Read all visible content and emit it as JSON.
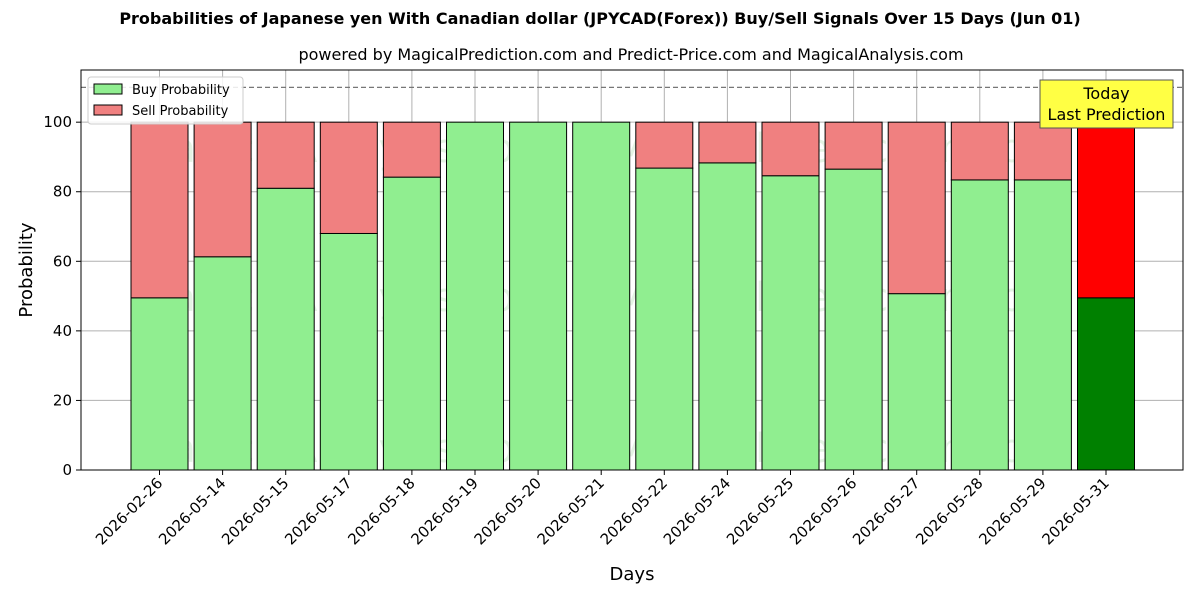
{
  "chart_data": {
    "type": "bar",
    "title": "Probabilities of Japanese yen With Canadian dollar (JPYCAD(Forex)) Buy/Sell Signals Over 15 Days (Jun 01)",
    "subtitle": "powered by MagicalPrediction.com and Predict-Price.com and MagicalAnalysis.com",
    "xlabel": "Days",
    "ylabel": "Probability",
    "ylim": [
      0,
      115
    ],
    "yticks": [
      0,
      20,
      40,
      60,
      80,
      100
    ],
    "reference_line": 110,
    "categories": [
      "2026-02-26",
      "2026-05-14",
      "2026-05-15",
      "2026-05-17",
      "2026-05-18",
      "2026-05-19",
      "2026-05-20",
      "2026-05-21",
      "2026-05-22",
      "2026-05-24",
      "2026-05-25",
      "2026-05-26",
      "2026-05-27",
      "2026-05-28",
      "2026-05-29",
      "2026-05-31"
    ],
    "series": [
      {
        "name": "Buy Probability",
        "color": "#90ee90",
        "highlight_color": "#008000",
        "values": [
          49.5,
          61.3,
          81,
          68,
          84.2,
          100,
          100,
          100,
          86.8,
          88.3,
          84.6,
          86.5,
          50.7,
          83.4,
          83.4,
          49.5
        ]
      },
      {
        "name": "Sell Probability",
        "color": "#f08080",
        "highlight_color": "#ff0000",
        "values": [
          50.5,
          38.7,
          19,
          32,
          15.8,
          0,
          0,
          0,
          13.2,
          11.7,
          15.4,
          13.5,
          49.3,
          16.6,
          16.6,
          50.5
        ]
      }
    ],
    "legend_position": "upper-left",
    "grid": true,
    "highlight_index": 15,
    "annotation": {
      "line1": "Today",
      "line2": "Last Prediction",
      "color": "#ffff44"
    },
    "watermarks": [
      "MagicalAnalysis.com",
      "MagicalPrediction.com"
    ]
  }
}
